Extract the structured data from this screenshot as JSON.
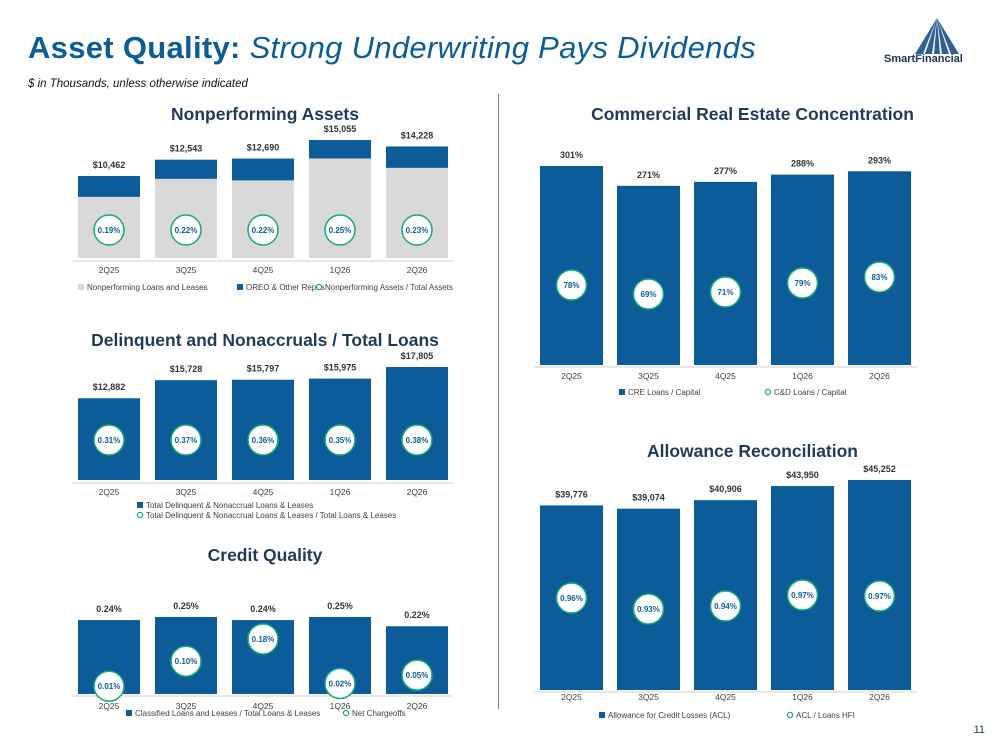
{
  "header": {
    "title_main": "Asset Quality:",
    "title_sub": "Strong Underwriting Pays Dividends",
    "subtitle": "$ in Thousands, unless otherwise indicated",
    "logo_text": "SmartFinancial",
    "page_number": "11"
  },
  "colors": {
    "navy": "#0b5c99",
    "gray": "#d9d9d9",
    "green": "#19a974",
    "title": "#1f3b5a"
  },
  "chart_data": [
    {
      "id": "npa",
      "type": "bar",
      "title": "Nonperforming Assets",
      "categories": [
        "2Q25",
        "3Q25",
        "4Q25",
        "1Q26",
        "2Q26"
      ],
      "totals": [
        "$10,462",
        "$12,543",
        "$12,690",
        "$15,055",
        "$14,228"
      ],
      "series": [
        {
          "name": "Nonperforming Loans and Leases",
          "values": [
            7800,
            10100,
            9900,
            12700,
            11500
          ]
        },
        {
          "name": "OREO & Other Repos",
          "values": [
            2662,
            2443,
            2790,
            2355,
            2728
          ]
        },
        {
          "name": "Nonperforming Assets / Total Assets",
          "values": [
            0.19,
            0.22,
            0.22,
            0.25,
            0.23
          ],
          "labels": [
            "0.19%",
            "0.22%",
            "0.22%",
            "0.25%",
            "0.23%"
          ]
        }
      ],
      "ylim": [
        0,
        15055
      ]
    },
    {
      "id": "delinq",
      "type": "bar",
      "title": "Delinquent and Nonaccruals / Total Loans",
      "categories": [
        "2Q25",
        "3Q25",
        "4Q25",
        "1Q26",
        "2Q26"
      ],
      "series": [
        {
          "name": "Total Delinquent & Nonaccrual Loans & Leases",
          "values": [
            12882,
            15728,
            15797,
            15975,
            17805
          ],
          "labels": [
            "$12,882",
            "$15,728",
            "$15,797",
            "$15,975",
            "$17,805"
          ]
        },
        {
          "name": "Total Delinquent & Nonaccrual Loans & Leases / Total Loans & Leases",
          "values": [
            0.31,
            0.37,
            0.36,
            0.35,
            0.38
          ],
          "labels": [
            "0.31%",
            "0.37%",
            "0.36%",
            "0.35%",
            "0.38%"
          ]
        }
      ],
      "ylim": [
        0,
        17805
      ]
    },
    {
      "id": "credit",
      "type": "bar",
      "title": "Credit Quality",
      "categories": [
        "2Q25",
        "3Q25",
        "4Q25",
        "1Q26",
        "2Q26"
      ],
      "series": [
        {
          "name": "Classified Loans and Leases / Total Loans & Leases",
          "values": [
            0.24,
            0.25,
            0.24,
            0.25,
            0.22
          ],
          "labels": [
            "0.24%",
            "0.25%",
            "0.24%",
            "0.25%",
            "0.22%"
          ]
        },
        {
          "name": "Net Chargeoffs",
          "values": [
            0.01,
            0.1,
            0.18,
            0.02,
            0.05
          ],
          "labels": [
            "0.01%",
            "0.10%",
            "0.18%",
            "0.02%",
            "0.05%"
          ]
        }
      ],
      "ylim": [
        0,
        0.25
      ]
    },
    {
      "id": "cre",
      "type": "bar",
      "title": "Commercial Real Estate Concentration",
      "categories": [
        "2Q25",
        "3Q25",
        "4Q25",
        "1Q26",
        "2Q26"
      ],
      "series": [
        {
          "name": "CRE Loans / Capital",
          "values": [
            301,
            271,
            277,
            288,
            293
          ],
          "labels": [
            "301%",
            "271%",
            "277%",
            "288%",
            "293%"
          ]
        },
        {
          "name": "C&D Loans / Capital",
          "values": [
            78,
            69,
            71,
            79,
            83
          ],
          "labels": [
            "78%",
            "69%",
            "71%",
            "79%",
            "83%"
          ]
        }
      ],
      "ylim": [
        0,
        301
      ]
    },
    {
      "id": "acl",
      "type": "bar",
      "title": "Allowance Reconciliation",
      "categories": [
        "2Q25",
        "3Q25",
        "4Q25",
        "1Q26",
        "2Q26"
      ],
      "series": [
        {
          "name": "Allowance for Credit Losses (ACL)",
          "values": [
            39776,
            39074,
            40906,
            43950,
            45252
          ],
          "labels": [
            "$39,776",
            "$39,074",
            "$40,906",
            "$43,950",
            "$45,252"
          ]
        },
        {
          "name": "ACL / Loans HFI",
          "values": [
            0.96,
            0.93,
            0.94,
            0.97,
            0.97
          ],
          "labels": [
            "0.96%",
            "0.93%",
            "0.94%",
            "0.97%",
            "0.97%"
          ]
        }
      ],
      "ylim": [
        0,
        45252
      ]
    }
  ]
}
